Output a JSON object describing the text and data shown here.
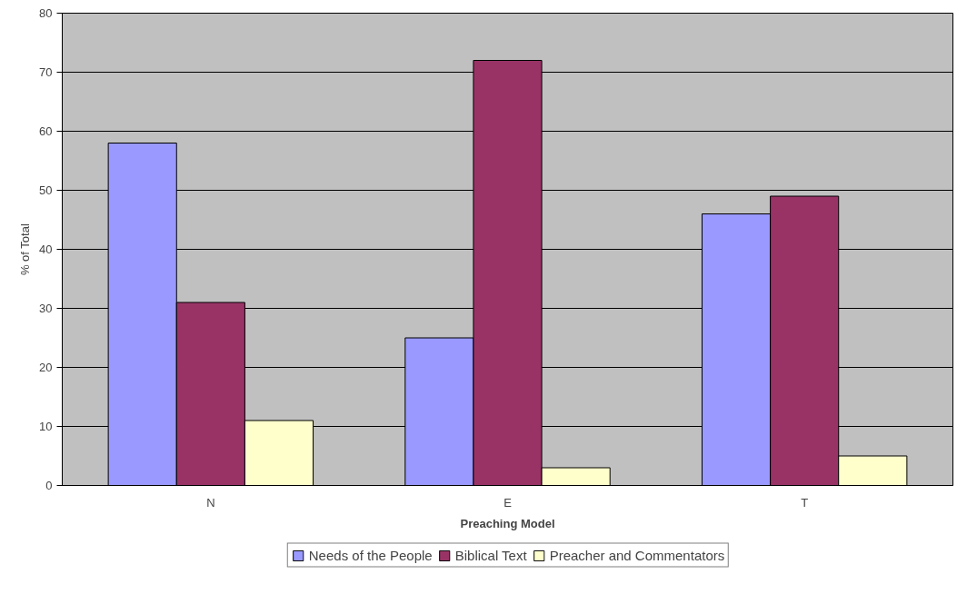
{
  "chart_data": {
    "type": "bar",
    "xlabel": "Preaching Model",
    "ylabel": "% of Total",
    "categories": [
      "N",
      "E",
      "T"
    ],
    "series": [
      {
        "name": "Needs of the People",
        "color": "#9999ff",
        "values": [
          58,
          25,
          46
        ]
      },
      {
        "name": "Biblical Text",
        "color": "#993366",
        "values": [
          31,
          72,
          49
        ]
      },
      {
        "name": "Preacher and Commentators",
        "color": "#ffffcc",
        "values": [
          11,
          3,
          5
        ]
      }
    ],
    "ylim": [
      0,
      80
    ],
    "yticks": [
      0,
      10,
      20,
      30,
      40,
      50,
      60,
      70,
      80
    ],
    "grid": "y",
    "legend": "bottom"
  }
}
